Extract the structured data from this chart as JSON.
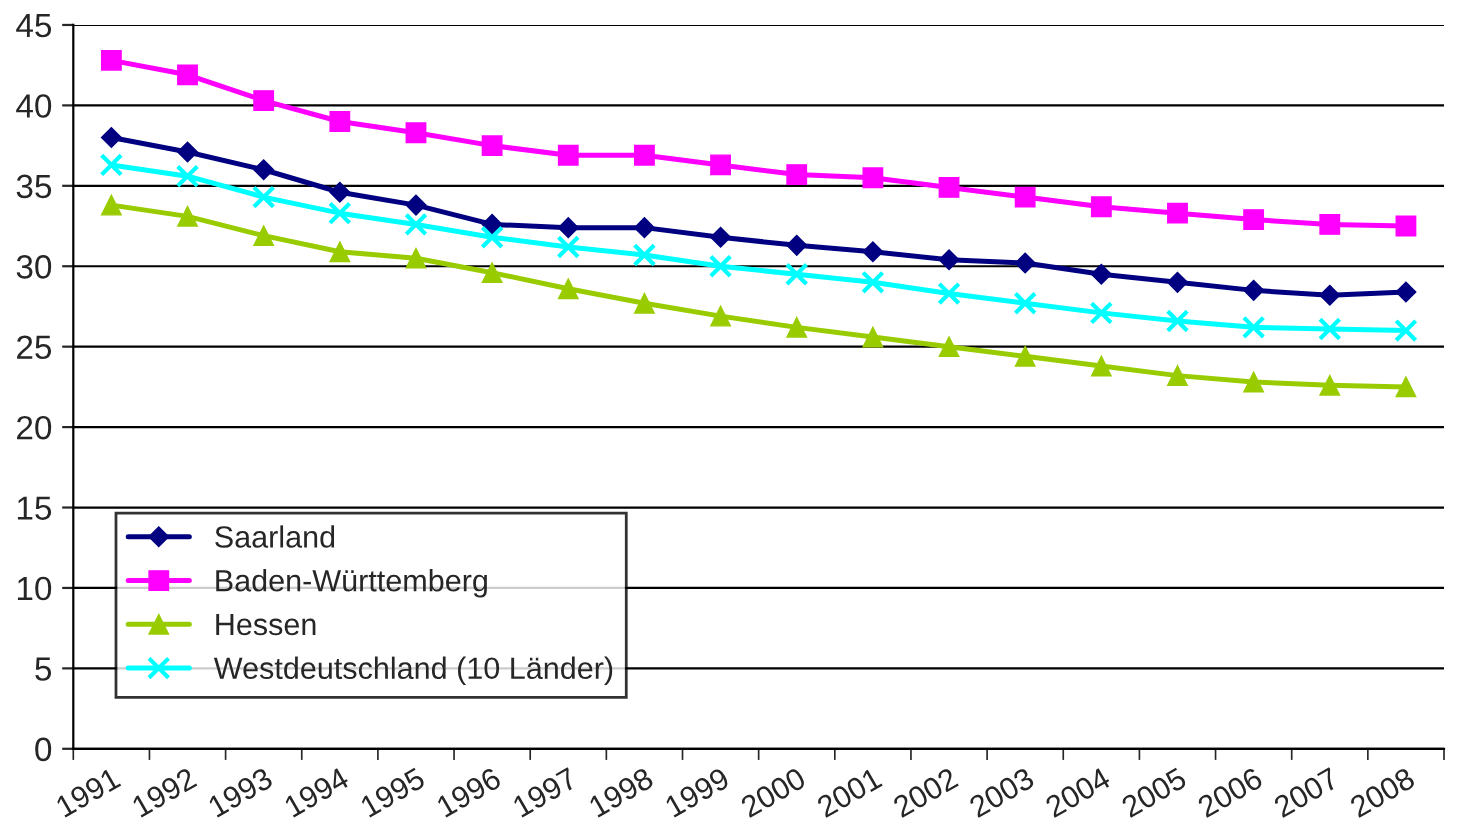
{
  "chart_data": {
    "type": "line",
    "categories": [
      "1991",
      "1992",
      "1993",
      "1994",
      "1995",
      "1996",
      "1997",
      "1998",
      "1999",
      "2000",
      "2001",
      "2002",
      "2003",
      "2004",
      "2005",
      "2006",
      "2007",
      "2008"
    ],
    "series": [
      {
        "name": "Saarland",
        "color": "#000080",
        "marker": "diamond",
        "values": [
          38.0,
          37.1,
          36.0,
          34.6,
          33.8,
          32.6,
          32.4,
          32.4,
          31.8,
          31.3,
          30.9,
          30.4,
          30.2,
          29.5,
          29.0,
          28.5,
          28.2,
          28.4
        ]
      },
      {
        "name": "Baden-Württemberg",
        "color": "#ff00ff",
        "marker": "square",
        "values": [
          42.8,
          41.9,
          40.3,
          39.0,
          38.3,
          37.5,
          36.9,
          36.9,
          36.3,
          35.7,
          35.5,
          34.9,
          34.3,
          33.7,
          33.3,
          32.9,
          32.6,
          32.5
        ]
      },
      {
        "name": "Hessen",
        "color": "#99cc00",
        "marker": "triangle",
        "values": [
          33.8,
          33.1,
          31.9,
          30.9,
          30.5,
          29.6,
          28.6,
          27.7,
          26.9,
          26.2,
          25.6,
          25.0,
          24.4,
          23.8,
          23.2,
          22.8,
          22.6,
          22.5
        ]
      },
      {
        "name": "Westdeutschland (10 Länder)",
        "color": "#00ffff",
        "marker": "cross",
        "values": [
          36.3,
          35.6,
          34.3,
          33.3,
          32.6,
          31.8,
          31.2,
          30.7,
          30.0,
          29.5,
          29.0,
          28.3,
          27.7,
          27.1,
          26.6,
          26.2,
          26.1,
          26.0
        ]
      }
    ],
    "ylim": [
      0,
      45
    ],
    "yticks": [
      0,
      5,
      10,
      15,
      20,
      25,
      30,
      35,
      40,
      45
    ],
    "grid": "y",
    "legend": "bottom left"
  }
}
